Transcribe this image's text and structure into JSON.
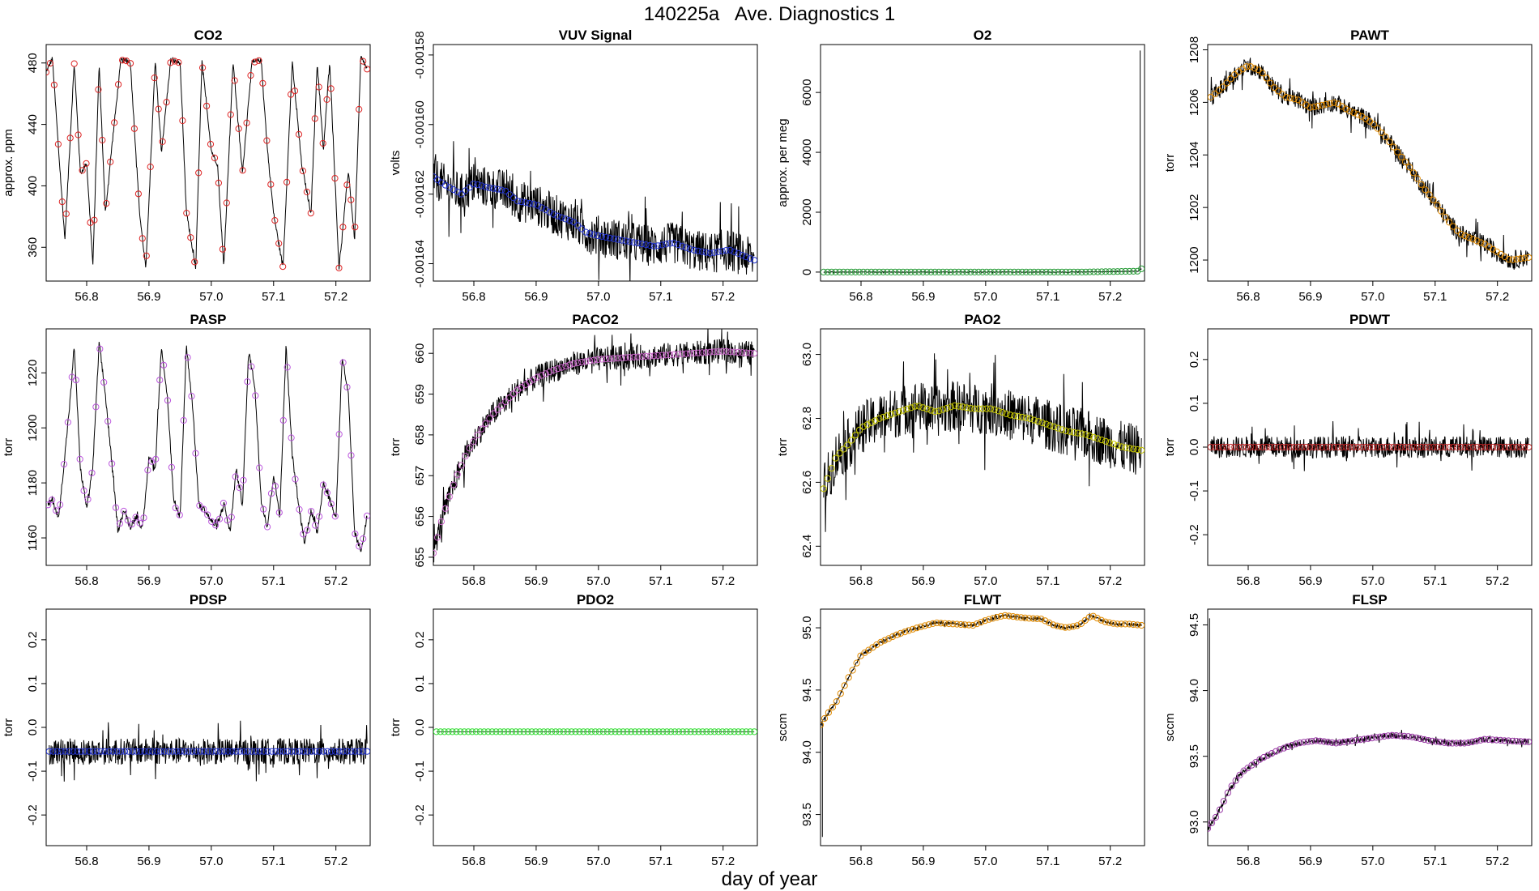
{
  "page": {
    "title": "140225a   Ave. Diagnostics 1",
    "xlabel": "day of year"
  },
  "chart_data": [
    {
      "type": "line",
      "title": "CO2",
      "ylabel": "approx. ppm",
      "xlim": [
        56.735,
        57.255
      ],
      "xticks": [
        "56.8",
        "56.9",
        "57.0",
        "57.1",
        "57.2"
      ],
      "ylim": [
        338,
        492
      ],
      "yticks": [
        "360",
        "400",
        "440",
        "480"
      ],
      "point_color": "#dd2222",
      "noise": 1.5,
      "zero_line": false,
      "x": [
        56.735,
        56.745,
        56.755,
        56.765,
        56.78,
        56.79,
        56.8,
        56.81,
        56.82,
        56.83,
        56.84,
        56.855,
        56.87,
        56.885,
        56.895,
        56.91,
        56.92,
        56.935,
        56.95,
        56.96,
        56.975,
        56.985,
        57.0,
        57.01,
        57.02,
        57.035,
        57.05,
        57.065,
        57.08,
        57.09,
        57.1,
        57.115,
        57.13,
        57.145,
        57.16,
        57.17,
        57.18,
        57.19,
        57.205,
        57.22,
        57.23,
        57.24,
        57.25
      ],
      "values": [
        474,
        483,
        423,
        365,
        480,
        408,
        415,
        348,
        480,
        382,
        424,
        482,
        481,
        382,
        346,
        481,
        422,
        482,
        480,
        383,
        346,
        481,
        423,
        414,
        347,
        481,
        408,
        480,
        482,
        424,
        382,
        347,
        480,
        414,
        382,
        480,
        423,
        482,
        346,
        410,
        365,
        484,
        476
      ]
    },
    {
      "type": "line",
      "title": "VUV Signal",
      "ylabel": "volts",
      "xlim": [
        56.735,
        57.255
      ],
      "xticks": [
        "56.8",
        "56.9",
        "57.0",
        "57.1",
        "57.2"
      ],
      "ylim": [
        -0.001645,
        -0.001577
      ],
      "yticks": [
        "-0.00164",
        "-0.00162",
        "-0.00160",
        "-0.00158"
      ],
      "point_color": "#2233cc",
      "noise": 6e-06,
      "zero_line": false,
      "x": [
        56.735,
        56.75,
        56.78,
        56.8,
        56.82,
        56.85,
        56.87,
        56.9,
        56.93,
        56.96,
        56.98,
        57.0,
        57.03,
        57.06,
        57.09,
        57.12,
        57.15,
        57.18,
        57.21,
        57.25
      ],
      "values": [
        -0.001615,
        -0.001617,
        -0.00162,
        -0.001617,
        -0.001618,
        -0.001619,
        -0.001622,
        -0.001623,
        -0.001626,
        -0.001628,
        -0.001631,
        -0.001632,
        -0.001633,
        -0.001634,
        -0.001635,
        -0.001634,
        -0.001636,
        -0.001637,
        -0.001636,
        -0.001639
      ]
    },
    {
      "type": "line",
      "title": "O2",
      "ylabel": "approx. per meg",
      "xlim": [
        56.735,
        57.255
      ],
      "xticks": [
        "56.8",
        "56.9",
        "57.0",
        "57.1",
        "57.2"
      ],
      "ylim": [
        -300,
        7600
      ],
      "yticks": [
        "0",
        "2000",
        "4000",
        "6000"
      ],
      "point_color": "#2a9d3a",
      "noise": 10,
      "zero_line": false,
      "x": [
        56.74,
        56.85,
        56.95,
        57.05,
        57.15,
        57.245,
        57.25
      ],
      "values": [
        0,
        0,
        0,
        0,
        0,
        30,
        110
      ],
      "spike": {
        "x": 57.248,
        "value": 7400
      }
    },
    {
      "type": "line",
      "title": "PAWT",
      "ylabel": "torr",
      "xlim": [
        56.735,
        57.255
      ],
      "xticks": [
        "56.8",
        "56.9",
        "57.0",
        "57.1",
        "57.2"
      ],
      "ylim": [
        1199.2,
        1208.2
      ],
      "yticks": [
        "1200",
        "1202",
        "1204",
        "1206",
        "1208"
      ],
      "point_color": "#e08a00",
      "noise": 0.35,
      "zero_line": false,
      "x": [
        56.74,
        56.76,
        56.78,
        56.8,
        56.82,
        56.84,
        56.86,
        56.88,
        56.9,
        56.92,
        56.94,
        56.96,
        56.98,
        57.0,
        57.02,
        57.04,
        57.06,
        57.08,
        57.1,
        57.12,
        57.14,
        57.16,
        57.18,
        57.2,
        57.22,
        57.25
      ],
      "values": [
        1206.2,
        1206.6,
        1207.1,
        1207.4,
        1207.2,
        1206.6,
        1206.2,
        1206.1,
        1205.8,
        1205.9,
        1206.0,
        1205.7,
        1205.5,
        1205.2,
        1204.7,
        1204.1,
        1203.5,
        1202.8,
        1202.2,
        1201.5,
        1201.0,
        1200.8,
        1200.6,
        1200.3,
        1200.0,
        1200.1
      ]
    },
    {
      "type": "line",
      "title": "PASP",
      "ylabel": "torr",
      "xlim": [
        56.735,
        57.255
      ],
      "xticks": [
        "56.8",
        "56.9",
        "57.0",
        "57.1",
        "57.2"
      ],
      "ylim": [
        1150,
        1236
      ],
      "yticks": [
        "1160",
        "1180",
        "1200",
        "1220"
      ],
      "point_color": "#bb55dd",
      "noise": 1.2,
      "zero_line": false,
      "x": [
        56.738,
        56.745,
        56.755,
        56.765,
        56.775,
        56.78,
        56.79,
        56.8,
        56.81,
        56.82,
        56.83,
        56.84,
        56.85,
        56.86,
        56.87,
        56.88,
        56.89,
        56.9,
        56.91,
        56.92,
        56.93,
        56.94,
        56.95,
        56.96,
        56.97,
        56.98,
        56.99,
        57.0,
        57.01,
        57.02,
        57.03,
        57.04,
        57.05,
        57.06,
        57.07,
        57.08,
        57.09,
        57.1,
        57.11,
        57.12,
        57.13,
        57.14,
        57.15,
        57.16,
        57.17,
        57.18,
        57.19,
        57.2,
        57.21,
        57.22,
        57.23,
        57.24,
        57.25
      ],
      "values": [
        1172,
        1174,
        1167,
        1190,
        1214,
        1230,
        1185,
        1171,
        1186,
        1231,
        1212,
        1188,
        1163,
        1170,
        1164,
        1168,
        1163,
        1190,
        1185,
        1230,
        1210,
        1172,
        1168,
        1230,
        1208,
        1172,
        1170,
        1166,
        1164,
        1173,
        1162,
        1185,
        1172,
        1228,
        1215,
        1174,
        1164,
        1183,
        1168,
        1230,
        1190,
        1172,
        1158,
        1170,
        1162,
        1180,
        1174,
        1167,
        1226,
        1212,
        1162,
        1155,
        1168
      ]
    },
    {
      "type": "line",
      "title": "PACO2",
      "ylabel": "torr",
      "xlim": [
        56.735,
        57.255
      ],
      "xticks": [
        "56.8",
        "56.9",
        "57.0",
        "57.1",
        "57.2"
      ],
      "ylim": [
        654.8,
        660.6
      ],
      "yticks": [
        "655",
        "656",
        "657",
        "658",
        "659",
        "660"
      ],
      "point_color": "#cc66cc",
      "noise": 0.3,
      "zero_line": false,
      "x": [
        56.735,
        56.75,
        56.77,
        56.79,
        56.81,
        56.83,
        56.85,
        56.87,
        56.9,
        56.93,
        56.96,
        57.0,
        57.05,
        57.1,
        57.15,
        57.2,
        57.25
      ],
      "values": [
        655.1,
        656.0,
        656.9,
        657.6,
        658.1,
        658.5,
        658.8,
        659.1,
        659.4,
        659.6,
        659.75,
        659.85,
        659.9,
        659.95,
        660.0,
        660.05,
        660.0
      ]
    },
    {
      "type": "line",
      "title": "PAO2",
      "ylabel": "torr",
      "xlim": [
        56.735,
        57.255
      ],
      "xticks": [
        "56.8",
        "56.9",
        "57.0",
        "57.1",
        "57.2"
      ],
      "ylim": [
        62.34,
        63.08
      ],
      "yticks": [
        "62.4",
        "62.6",
        "62.8",
        "63.0"
      ],
      "point_color": "#c8c800",
      "noise": 0.08,
      "zero_line": false,
      "x": [
        56.74,
        56.76,
        56.78,
        56.8,
        56.83,
        56.86,
        56.89,
        56.92,
        56.95,
        56.98,
        57.01,
        57.04,
        57.07,
        57.1,
        57.13,
        57.16,
        57.19,
        57.22,
        57.25
      ],
      "values": [
        62.58,
        62.68,
        62.72,
        62.77,
        62.8,
        62.82,
        62.84,
        62.82,
        62.84,
        62.83,
        62.83,
        62.81,
        62.8,
        62.78,
        62.76,
        62.75,
        62.73,
        62.71,
        62.7
      ]
    },
    {
      "type": "line",
      "title": "PDWT",
      "ylabel": "torr",
      "xlim": [
        56.735,
        57.255
      ],
      "xticks": [
        "56.8",
        "56.9",
        "57.0",
        "57.1",
        "57.2"
      ],
      "ylim": [
        -0.27,
        0.27
      ],
      "yticks": [
        "-0.2",
        "-0.1",
        "0.0",
        "0.1",
        "0.2"
      ],
      "point_color": "#bb2222",
      "noise": 0.025,
      "zero_line": false,
      "x": [
        56.74,
        57.25
      ],
      "values": [
        0.0,
        0.0
      ]
    },
    {
      "type": "line",
      "title": "PDSP",
      "ylabel": "torr",
      "xlim": [
        56.735,
        57.255
      ],
      "xticks": [
        "56.8",
        "56.9",
        "57.0",
        "57.1",
        "57.2"
      ],
      "ylim": [
        -0.27,
        0.27
      ],
      "yticks": [
        "-0.2",
        "-0.1",
        "0.0",
        "0.1",
        "0.2"
      ],
      "point_color": "#2233cc",
      "noise": 0.03,
      "zero_line": false,
      "x": [
        56.74,
        57.25
      ],
      "values": [
        -0.055,
        -0.055
      ]
    },
    {
      "type": "line",
      "title": "PDO2",
      "ylabel": "torr",
      "xlim": [
        56.735,
        57.255
      ],
      "xticks": [
        "56.8",
        "56.9",
        "57.0",
        "57.1",
        "57.2"
      ],
      "ylim": [
        -0.27,
        0.27
      ],
      "yticks": [
        "-0.2",
        "-0.1",
        "0.0",
        "0.1",
        "0.2"
      ],
      "point_color": "#33dd33",
      "noise": 0,
      "zero_line": false,
      "x": [
        56.74,
        57.25
      ],
      "values": [
        -0.01,
        -0.01
      ]
    },
    {
      "type": "line",
      "title": "FLWT",
      "ylabel": "sccm",
      "xlim": [
        56.735,
        57.255
      ],
      "xticks": [
        "56.8",
        "56.9",
        "57.0",
        "57.1",
        "57.2"
      ],
      "ylim": [
        93.25,
        95.15
      ],
      "yticks": [
        "93.5",
        "94.0",
        "94.5",
        "95.0"
      ],
      "point_color": "#e08a00",
      "noise": 0.012,
      "zero_line": false,
      "x": [
        56.735,
        56.745,
        56.76,
        56.78,
        56.8,
        56.83,
        56.86,
        56.89,
        56.92,
        56.95,
        56.98,
        57.0,
        57.03,
        57.06,
        57.09,
        57.11,
        57.13,
        57.15,
        57.17,
        57.19,
        57.21,
        57.23,
        57.25
      ],
      "values": [
        94.22,
        94.3,
        94.4,
        94.6,
        94.78,
        94.88,
        94.95,
        95.0,
        95.04,
        95.03,
        95.02,
        95.06,
        95.1,
        95.08,
        95.07,
        95.02,
        95.0,
        95.02,
        95.1,
        95.05,
        95.03,
        95.03,
        95.02
      ],
      "spike": {
        "x": 56.738,
        "value": 93.32
      }
    },
    {
      "type": "line",
      "title": "FLSP",
      "ylabel": "sccm",
      "xlim": [
        56.735,
        57.255
      ],
      "xticks": [
        "56.8",
        "56.9",
        "57.0",
        "57.1",
        "57.2"
      ],
      "ylim": [
        92.82,
        94.62
      ],
      "yticks": [
        "93.0",
        "93.5",
        "94.0",
        "94.5"
      ],
      "point_color": "#9a3aa6",
      "noise": 0.02,
      "zero_line": false,
      "x": [
        56.735,
        56.75,
        56.77,
        56.79,
        56.82,
        56.85,
        56.88,
        56.91,
        56.94,
        56.97,
        57.0,
        57.03,
        57.06,
        57.09,
        57.12,
        57.15,
        57.18,
        57.21,
        57.25
      ],
      "values": [
        92.95,
        93.05,
        93.25,
        93.38,
        93.48,
        93.55,
        93.6,
        93.62,
        93.6,
        93.62,
        93.64,
        93.66,
        93.65,
        93.62,
        93.6,
        93.6,
        93.63,
        93.62,
        93.61
      ],
      "spike": {
        "x": 56.738,
        "value": 94.55
      }
    }
  ]
}
